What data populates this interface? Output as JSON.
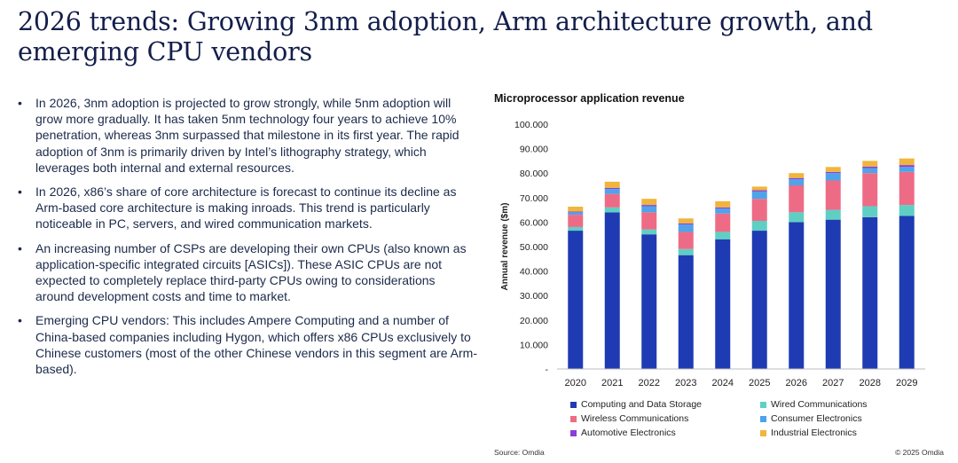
{
  "slide": {
    "title": "2026 trends: Growing 3nm adoption, Arm architecture growth, and emerging CPU vendors",
    "bullets": [
      "In 2026, 3nm adoption is projected to grow strongly, while 5nm adoption will grow more gradually. It has taken 5nm technology four years to achieve 10% penetration, whereas 3nm surpassed that milestone in its first year. The rapid adoption of 3nm is primarily driven by Intel’s lithography strategy, which leverages both internal and external resources.",
      "In 2026, x86’s share of core architecture is forecast to continue its decline as Arm-based core architecture is making inroads. This trend is particularly noticeable in PC, servers, and wired communication markets.",
      "An increasing number of CSPs are developing their own CPUs (also known as application-specific integrated circuits [ASICs]). These ASIC CPUs are not expected to completely replace third-party CPUs owing to considerations around development costs and time to market.",
      "Emerging CPU vendors: This includes Ampere Computing and a number of China-based companies including Hygon, which offers x86 CPUs exclusively to Chinese customers (most of the other Chinese vendors in this segment are Arm-based)."
    ],
    "bullet_glyph": "•",
    "source": "Source: Omdia",
    "copyright": "© 2025 Omdia"
  },
  "chart_data": {
    "type": "bar",
    "stacked": true,
    "title": "Microprocessor application revenue",
    "xlabel": "",
    "ylabel": "Annual revenue ($m)",
    "ylim": [
      0,
      100
    ],
    "yticks": [
      0,
      10,
      20,
      30,
      40,
      50,
      60,
      70,
      80,
      90,
      100
    ],
    "ytick_labels": [
      "-",
      "10.000",
      "20.000",
      "30.000",
      "40.000",
      "50.000",
      "60.000",
      "70.000",
      "80.000",
      "90.000",
      "100.000"
    ],
    "categories": [
      "2020",
      "2021",
      "2022",
      "2023",
      "2024",
      "2025",
      "2026",
      "2027",
      "2028",
      "2029"
    ],
    "series": [
      {
        "name": "Computing and Data Storage",
        "color": "#1f3bb3",
        "values": [
          56.5,
          64.0,
          55.0,
          46.5,
          53.0,
          56.5,
          60.0,
          61.0,
          62.0,
          62.5
        ]
      },
      {
        "name": "Wired Communications",
        "color": "#5fcfc4",
        "values": [
          1.5,
          2.0,
          2.0,
          2.5,
          3.0,
          4.0,
          4.0,
          4.0,
          4.5,
          4.5
        ]
      },
      {
        "name": "Wireless Communications",
        "color": "#ee6b86",
        "values": [
          5.0,
          5.5,
          7.0,
          7.0,
          7.5,
          9.0,
          11.0,
          12.0,
          13.5,
          13.5
        ]
      },
      {
        "name": "Consumer Electronics",
        "color": "#4ea3ea",
        "values": [
          1.0,
          2.0,
          2.5,
          3.0,
          2.0,
          3.0,
          2.5,
          3.0,
          2.0,
          2.0
        ]
      },
      {
        "name": "Automotive Electronics",
        "color": "#8b3fd9",
        "values": [
          0.3,
          0.5,
          0.5,
          0.5,
          0.5,
          0.5,
          0.5,
          0.5,
          0.7,
          0.8
        ]
      },
      {
        "name": "Industrial Electronics",
        "color": "#f0b53c",
        "values": [
          2.0,
          2.5,
          2.5,
          2.0,
          2.5,
          1.5,
          2.0,
          2.0,
          2.3,
          2.7
        ]
      }
    ],
    "legend_position": "bottom",
    "grid": false
  }
}
